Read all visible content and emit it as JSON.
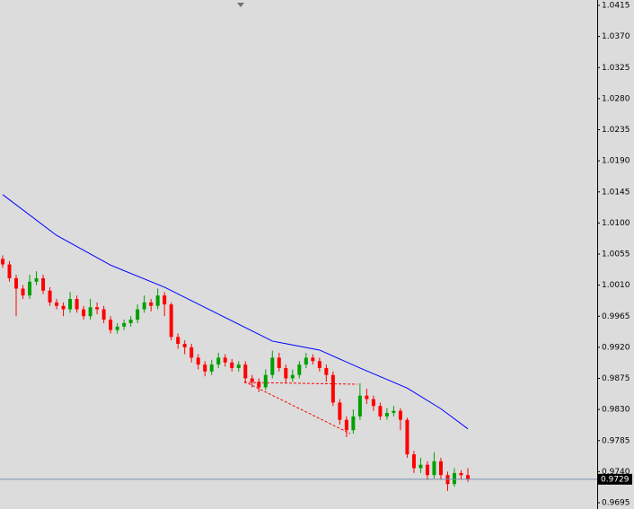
{
  "chart_data": {
    "type": "candlestick",
    "open": [
      1.0048,
      1.004,
      1.002,
      1.0005,
      0.9995,
      1.0015,
      1.002,
      1.0002,
      0.9985,
      0.998,
      0.9975,
      0.999,
      0.9975,
      0.9965,
      0.9978,
      0.9975,
      0.996,
      0.9945,
      0.995,
      0.9955,
      0.996,
      0.9975,
      0.9985,
      0.998,
      0.9995,
      0.9982,
      0.9935,
      0.9925,
      0.992,
      0.9905,
      0.9895,
      0.9885,
      0.9895,
      0.9905,
      0.9898,
      0.989,
      0.9895,
      0.9875,
      0.987,
      0.9862,
      0.988,
      0.9905,
      0.989,
      0.9875,
      0.988,
      0.9895,
      0.9905,
      0.99,
      0.989,
      0.988,
      0.984,
      0.9815,
      0.98,
      0.982,
      0.985,
      0.9845,
      0.9835,
      0.982,
      0.9825,
      0.9828,
      0.9815,
      0.9765,
      0.9745,
      0.975,
      0.9735,
      0.9755,
      0.9735,
      0.9722,
      0.9738,
      0.9735
    ],
    "high": [
      1.0053,
      1.0045,
      1.0025,
      1.001,
      1.0025,
      1.003,
      1.0025,
      1.0007,
      0.999,
      0.9985,
      1.0,
      0.9995,
      0.998,
      0.999,
      0.9985,
      0.998,
      0.9965,
      0.9955,
      0.996,
      0.9965,
      0.9982,
      0.9995,
      0.999,
      1.0005,
      1.0,
      0.9985,
      0.994,
      0.993,
      0.9925,
      0.991,
      0.99,
      0.9902,
      0.9912,
      0.991,
      0.9903,
      0.99,
      0.99,
      0.988,
      0.9875,
      0.9888,
      0.9915,
      0.9912,
      0.9895,
      0.9888,
      0.99,
      0.9912,
      0.991,
      0.9905,
      0.9895,
      0.9885,
      0.9845,
      0.982,
      0.983,
      0.9868,
      0.986,
      0.985,
      0.984,
      0.9832,
      0.9835,
      0.9832,
      0.9818,
      0.977,
      0.976,
      0.9755,
      0.9768,
      0.976,
      0.974,
      0.9745,
      0.9742,
      0.9745
    ],
    "low": [
      1.0035,
      1.0015,
      0.9965,
      0.999,
      0.999,
      1.001,
      0.9997,
      0.998,
      0.9975,
      0.9965,
      0.997,
      0.997,
      0.996,
      0.996,
      0.9968,
      0.9955,
      0.994,
      0.994,
      0.9945,
      0.995,
      0.9955,
      0.997,
      0.9972,
      0.9975,
      0.9965,
      0.993,
      0.9918,
      0.991,
      0.9898,
      0.9888,
      0.9878,
      0.988,
      0.989,
      0.9892,
      0.9885,
      0.9885,
      0.9868,
      0.9862,
      0.9855,
      0.9858,
      0.9875,
      0.9885,
      0.9868,
      0.987,
      0.9875,
      0.989,
      0.9895,
      0.9885,
      0.987,
      0.9835,
      0.9808,
      0.979,
      0.9795,
      0.9815,
      0.9838,
      0.9828,
      0.9815,
      0.9815,
      0.982,
      0.98,
      0.976,
      0.9738,
      0.9738,
      0.9728,
      0.973,
      0.9728,
      0.9712,
      0.9718,
      0.9728,
      0.9725
    ],
    "close": [
      1.004,
      1.002,
      1.0005,
      0.9995,
      1.0015,
      1.002,
      1.0002,
      0.9985,
      0.998,
      0.9975,
      0.999,
      0.9975,
      0.9965,
      0.9978,
      0.9975,
      0.996,
      0.9945,
      0.995,
      0.9955,
      0.996,
      0.9975,
      0.9985,
      0.998,
      0.9995,
      0.9982,
      0.9935,
      0.9925,
      0.992,
      0.9905,
      0.9895,
      0.9885,
      0.9895,
      0.9905,
      0.9898,
      0.989,
      0.9895,
      0.9875,
      0.987,
      0.9862,
      0.988,
      0.9905,
      0.989,
      0.9875,
      0.988,
      0.9895,
      0.9905,
      0.99,
      0.989,
      0.988,
      0.984,
      0.9815,
      0.98,
      0.982,
      0.985,
      0.9845,
      0.9835,
      0.982,
      0.9825,
      0.9828,
      0.9815,
      0.9765,
      0.9745,
      0.975,
      0.9735,
      0.9755,
      0.9735,
      0.9722,
      0.9738,
      0.9735,
      0.9729
    ],
    "up_color": "#00a000",
    "down_color": "#ff0000",
    "moving_average": {
      "color": "#0000ff",
      "x": [
        0,
        8,
        16,
        24,
        32,
        40,
        47,
        53,
        60,
        65,
        69
      ],
      "values": [
        1.0141,
        1.0082,
        1.0039,
        1.0007,
        0.9968,
        0.9929,
        0.9916,
        0.989,
        0.9861,
        0.9831,
        0.9802
      ]
    },
    "last_price": 0.9729,
    "ylim": [
      0.9695,
      1.0415
    ],
    "yticks": [
      1.0415,
      {
        "value": 1.037,
        "label": "1.0370"
      },
      1.0325,
      {
        "value": 1.028,
        "label": "1.0280"
      },
      1.0235,
      {
        "value": 1.019,
        "label": "1.0190"
      },
      1.0145,
      {
        "value": 1.01,
        "label": "1.0100"
      },
      1.0055,
      {
        "value": 1.001,
        "label": "1.0010"
      },
      0.9965,
      {
        "value": 0.992,
        "label": "0.9920"
      },
      0.9875,
      {
        "value": 0.983,
        "label": "0.9830"
      },
      0.9785,
      {
        "value": 0.974,
        "label": "0.9740"
      },
      0.9695
    ]
  }
}
